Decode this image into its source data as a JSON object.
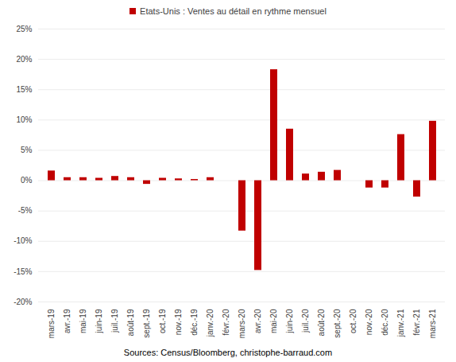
{
  "chart_data": {
    "type": "bar",
    "caption": "Sources: Census/Bloomberg, christophe-barraud.com",
    "categories": [
      "mars-19",
      "avr.-19",
      "mai-19",
      "juin-19",
      "juil.-19",
      "août-19",
      "sept.-19",
      "oct.-19",
      "nov.-19",
      "déc.-19",
      "janv.-20",
      "févr.-20",
      "mars-20",
      "avr.-20",
      "mai-20",
      "juin-20",
      "juil.-20",
      "août-20",
      "sept.-20",
      "oct.-20",
      "nov.-20",
      "déc.-20",
      "janv.-21",
      "févr.-21",
      "mars-21"
    ],
    "series": [
      {
        "name": "Etats-Unis : Ventes au détail en rythme mensuel",
        "color": "#c00000",
        "values": [
          1.6,
          0.5,
          0.5,
          0.4,
          0.7,
          0.5,
          -0.6,
          0.4,
          0.3,
          0.2,
          0.5,
          0.0,
          -8.3,
          -14.8,
          18.3,
          8.5,
          1.1,
          1.4,
          1.7,
          0.0,
          -1.2,
          -1.2,
          7.6,
          -2.7,
          9.8
        ]
      }
    ],
    "ylim": [
      -20,
      25
    ],
    "yticks": [
      {
        "value": -20,
        "label": "-20%"
      },
      {
        "value": -15,
        "label": "-15%"
      },
      {
        "value": -10,
        "label": "-10%"
      },
      {
        "value": -5,
        "label": "-5%"
      },
      {
        "value": 0,
        "label": "0%"
      },
      {
        "value": 5,
        "label": "5%"
      },
      {
        "value": 10,
        "label": "10%"
      },
      {
        "value": 15,
        "label": "15%"
      },
      {
        "value": 20,
        "label": "20%"
      },
      {
        "value": 25,
        "label": "25%"
      }
    ],
    "grid": true,
    "legend": "top"
  }
}
